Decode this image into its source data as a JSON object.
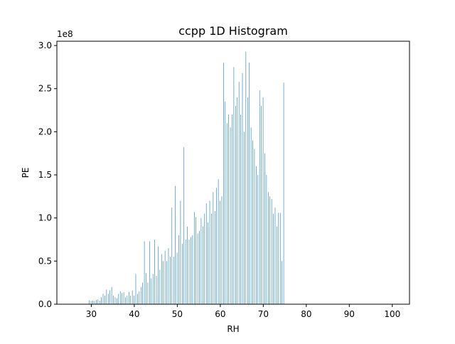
{
  "chart_data": {
    "type": "bar",
    "title": "ccpp 1D Histogram",
    "xlabel": "RH",
    "ylabel": "PE",
    "y_multiplier": "1e8",
    "xlim": [
      22.0,
      104.0
    ],
    "ylim": [
      0.0,
      3.05
    ],
    "xticks": [
      30,
      40,
      50,
      60,
      70,
      80,
      90,
      100
    ],
    "yticks": [
      0.0,
      0.5,
      1.0,
      1.5,
      2.0,
      2.5,
      3.0
    ],
    "ytick_labels": [
      "0.0",
      "0.5",
      "1.0",
      "1.5",
      "2.0",
      "2.5",
      "3.0"
    ],
    "grid": false,
    "legend": "none",
    "bar_color": "#1f77b4",
    "bins": {
      "start": 25.5,
      "width": 0.1
    },
    "values": [
      0.0,
      0.0,
      0.0,
      0.0,
      0.0,
      0.0,
      0.0,
      0.0,
      0.0,
      0.0,
      0.0,
      0.0,
      0.0,
      0.0,
      0.0,
      0.0,
      0.0,
      0.0,
      0.0,
      0.0,
      0.0,
      0.0,
      0.0,
      0.0,
      0.0,
      0.0,
      0.0,
      0.0,
      0.0,
      0.0,
      0.0,
      0.0,
      0.0,
      0.0,
      0.0,
      0.0,
      0.0,
      0.0,
      0.0,
      0.0,
      0.045,
      0.0,
      0.0,
      0.0,
      0.038,
      0.0,
      0.0,
      0.0,
      0.042,
      0.0,
      0.0,
      0.0,
      0.037,
      0.0,
      0.0,
      0.0,
      0.05,
      0.0,
      0.0,
      0.0,
      0.055,
      0.0,
      0.0,
      0.0,
      0.041,
      0.0,
      0.0,
      0.0,
      0.08,
      0.0,
      0.0,
      0.0,
      0.12,
      0.0,
      0.0,
      0.0,
      0.1,
      0.0,
      0.0,
      0.0,
      0.17,
      0.0,
      0.0,
      0.0,
      0.12,
      0.0,
      0.0,
      0.0,
      0.16,
      0.0,
      0.0,
      0.0,
      0.2,
      0.0,
      0.0,
      0.0,
      0.1,
      0.0,
      0.0,
      0.0,
      0.08,
      0.0,
      0.0,
      0.0,
      0.07,
      0.0,
      0.0,
      0.0,
      0.12,
      0.0,
      0.0,
      0.0,
      0.15,
      0.0,
      0.0,
      0.0,
      0.13,
      0.0,
      0.0,
      0.0,
      0.14,
      0.0,
      0.0,
      0.0,
      0.08,
      0.0,
      0.0,
      0.0,
      0.1,
      0.0,
      0.0,
      0.0,
      0.14,
      0.0,
      0.0,
      0.0,
      0.1,
      0.0,
      0.0,
      0.0,
      0.16,
      0.0,
      0.0,
      0.0,
      0.1,
      0.0,
      0.0,
      0.0,
      0.35,
      0.0,
      0.0,
      0.0,
      0.12,
      0.0,
      0.0,
      0.0,
      0.15,
      0.0,
      0.0,
      0.0,
      0.2,
      0.0,
      0.0,
      0.0,
      0.25,
      0.0,
      0.0,
      0.0,
      0.73,
      0.0,
      0.0,
      0.0,
      0.36,
      0.0,
      0.0,
      0.0,
      0.25,
      0.0,
      0.0,
      0.0,
      0.73,
      0.0,
      0.0,
      0.0,
      0.3,
      0.0,
      0.0,
      0.0,
      0.35,
      0.0,
      0.0,
      0.0,
      0.75,
      0.0,
      0.0,
      0.0,
      0.33,
      0.0,
      0.0,
      0.0,
      0.67,
      0.0,
      0.0,
      0.0,
      0.4,
      0.0,
      0.0,
      0.0,
      0.58,
      0.0,
      0.0,
      0.0,
      0.5,
      0.0,
      0.0,
      0.0,
      0.62,
      0.0,
      0.0,
      0.0,
      0.5,
      0.0,
      0.0,
      0.0,
      0.65,
      0.0,
      0.0,
      0.0,
      0.55,
      0.0,
      0.0,
      0.0,
      1.12,
      0.0,
      0.0,
      0.0,
      0.55,
      0.0,
      0.0,
      0.0,
      1.37,
      0.0,
      0.0,
      0.0,
      0.6,
      0.0,
      0.0,
      0.0,
      0.8,
      0.0,
      0.0,
      0.0,
      1.2,
      0.0,
      0.0,
      0.0,
      0.7,
      0.0,
      0.0,
      0.0,
      1.82,
      0.0,
      0.0,
      0.0,
      0.75,
      0.0,
      0.0,
      0.0,
      0.9,
      0.0,
      0.0,
      0.0,
      0.75,
      0.0,
      0.0,
      0.0,
      0.78,
      0.0,
      0.0,
      0.0,
      0.8,
      0.0,
      0.0,
      0.0,
      1.07,
      0.0,
      0.0,
      0.0,
      1.01,
      0.0,
      0.0,
      0.0,
      0.82,
      0.0,
      0.0,
      0.0,
      0.85,
      0.0,
      0.0,
      0.0,
      1.0,
      0.0,
      0.0,
      0.0,
      0.9,
      0.0,
      0.0,
      0.0,
      1.05,
      0.0,
      0.0,
      0.0,
      1.17,
      0.0,
      0.0,
      0.0,
      0.95,
      0.0,
      0.0,
      0.0,
      1.2,
      0.0,
      0.0,
      0.0,
      1.05,
      0.0,
      0.0,
      0.0,
      1.3,
      0.0,
      0.0,
      0.0,
      1.08,
      0.0,
      0.0,
      0.0,
      1.35,
      0.0,
      0.0,
      0.0,
      1.45,
      0.0,
      0.0,
      0.0,
      1.2,
      0.0,
      0.0,
      0.0,
      1.25,
      0.0,
      0.0,
      0.0,
      2.8,
      0.0,
      0.0,
      0.0,
      2.35,
      0.0,
      0.0,
      0.0,
      2.1,
      0.0,
      0.0,
      0.0,
      2.2,
      0.0,
      0.0,
      0.0,
      2.05,
      0.0,
      0.0,
      0.0,
      2.2,
      0.0,
      0.0,
      0.0,
      2.75,
      0.0,
      0.0,
      0.0,
      2.3,
      0.0,
      0.0,
      0.0,
      2.4,
      0.0,
      0.0,
      0.0,
      2.58,
      0.0,
      0.0,
      0.0,
      2.2,
      0.0,
      0.0,
      0.0,
      2.68,
      0.0,
      0.0,
      0.0,
      2.0,
      0.0,
      0.0,
      0.0,
      2.93,
      0.0,
      0.0,
      0.0,
      2.4,
      0.0,
      0.0,
      0.0,
      2.8,
      0.0,
      0.0,
      0.0,
      2.05,
      0.0,
      0.0,
      0.0,
      1.9,
      0.0,
      0.0,
      0.0,
      1.8,
      0.0,
      0.0,
      0.0,
      1.6,
      0.0,
      0.0,
      0.0,
      1.5,
      0.0,
      0.0,
      0.0,
      2.48,
      0.0,
      0.0,
      0.0,
      2.3,
      0.0,
      0.0,
      0.0,
      2.4,
      0.0,
      0.0,
      0.0,
      1.75,
      0.0,
      0.0,
      0.0,
      1.5,
      0.0,
      0.0,
      0.0,
      1.3,
      0.0,
      0.0,
      0.0,
      1.25,
      0.0,
      0.0,
      0.0,
      1.22,
      0.0,
      0.0,
      0.0,
      1.05,
      0.0,
      0.0,
      0.0,
      1.12,
      0.0,
      0.0,
      0.0,
      0.9,
      0.0,
      0.0,
      0.0,
      1.06,
      0.0,
      0.0,
      0.0,
      1.06,
      0.0,
      0.0,
      0.0,
      0.5,
      0.0,
      0.0,
      0.0,
      2.57,
      0.0,
      0.0,
      0.0,
      0.0,
      0.0,
      0.0,
      0.0,
      0.0,
      0.0,
      0.0,
      0.0,
      0.0,
      0.0,
      0.0,
      0.0,
      0.0,
      0.0,
      0.0,
      0.0,
      0.0,
      0.0,
      0.0,
      0.0,
      0.0,
      0.0,
      0.0,
      0.0,
      0.0,
      0.0,
      0.0,
      0.0,
      0.0,
      0.0,
      0.0,
      0.0,
      0.0,
      0.0,
      0.0,
      0.0
    ]
  }
}
